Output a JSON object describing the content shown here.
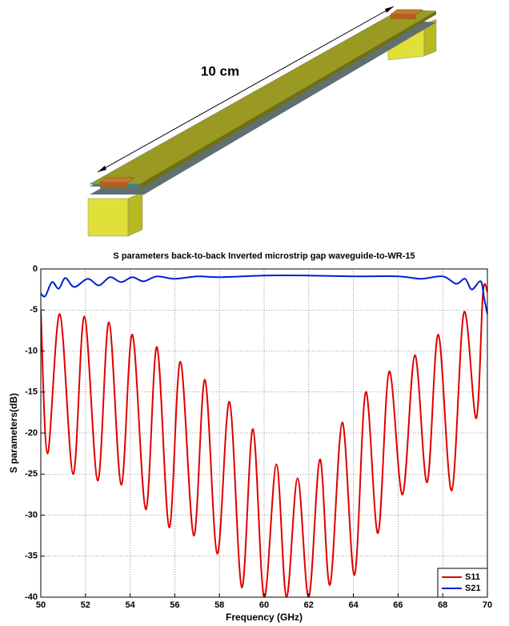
{
  "illustration": {
    "label": "10 cm"
  },
  "chart_data": {
    "type": "line",
    "title": "S parameters back-to-back Inverted microstrip gap waveguide-to-WR-15",
    "x_label": "Frequency (GHz)",
    "y_label": "S parameters(dB)",
    "xlim": [
      50,
      70
    ],
    "xticks": [
      50,
      52,
      54,
      56,
      58,
      60,
      62,
      64,
      66,
      68,
      70
    ],
    "ylim": [
      -40,
      0
    ],
    "yticks": [
      -40,
      -35,
      -30,
      -25,
      -20,
      -15,
      -10,
      -5,
      0
    ],
    "grid": true,
    "legend": "lower right",
    "series": [
      {
        "name": "S11",
        "color": "#e00000",
        "x": [
          50,
          50.3,
          50.85,
          51.45,
          51.95,
          52.55,
          53.05,
          53.6,
          54.1,
          54.7,
          55.2,
          55.75,
          56.25,
          56.85,
          57.35,
          57.9,
          58.45,
          59.0,
          59.5,
          60.0,
          60.55,
          61.0,
          61.5,
          62.0,
          62.5,
          62.95,
          63.5,
          64.05,
          64.55,
          65.1,
          65.6,
          66.2,
          66.75,
          67.3,
          67.8,
          68.4,
          68.95,
          69.5,
          69.8,
          70
        ],
        "values": [
          -5,
          -22.5,
          -5.5,
          -25,
          -5.8,
          -25.8,
          -6.5,
          -26.3,
          -8,
          -29.3,
          -9.5,
          -31.5,
          -11.3,
          -32.5,
          -13.5,
          -34.7,
          -16.2,
          -38.8,
          -19.5,
          -40,
          -23.8,
          -40,
          -25.5,
          -40,
          -23.2,
          -38.5,
          -18.7,
          -37.3,
          -15,
          -32.2,
          -12.5,
          -27.5,
          -10.5,
          -26,
          -8,
          -27,
          -5.3,
          -18.2,
          -3,
          -2.8
        ]
      },
      {
        "name": "S21",
        "color": "#0020d0",
        "x": [
          50,
          50.2,
          50.5,
          50.8,
          51.1,
          51.5,
          52.1,
          52.6,
          53.1,
          53.6,
          54.1,
          54.6,
          55.2,
          56,
          57,
          58,
          60,
          62,
          64,
          66,
          67,
          68,
          68.6,
          69,
          69.3,
          69.7,
          69.85,
          70
        ],
        "values": [
          -3,
          -3.3,
          -1.6,
          -2.4,
          -1.1,
          -2.2,
          -1.2,
          -2.0,
          -1.0,
          -1.6,
          -1.0,
          -1.5,
          -0.9,
          -1.2,
          -0.9,
          -1.0,
          -0.8,
          -0.8,
          -0.9,
          -0.9,
          -1.2,
          -0.9,
          -1.8,
          -1.2,
          -2.5,
          -1.5,
          -3.5,
          -5.5
        ]
      }
    ]
  }
}
